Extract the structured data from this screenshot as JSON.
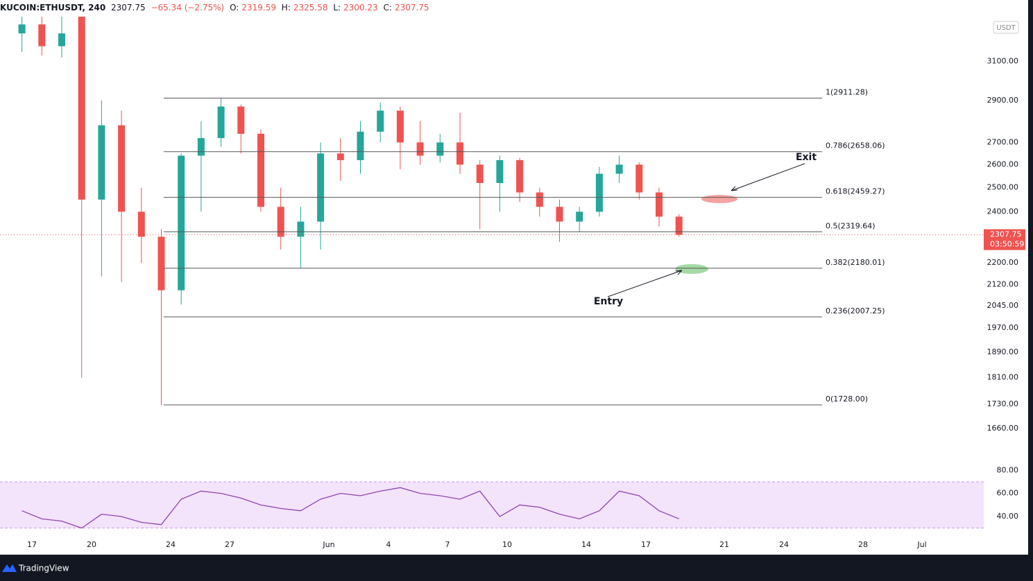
{
  "header": {
    "symbol": "KUCOIN:ETHUSDT, 240",
    "last": 2307.75,
    "change": "−65.34 (−2.75%)",
    "ohlc": [
      {
        "label": "O:",
        "value": 2319.59
      },
      {
        "label": "H:",
        "value": 2325.58
      },
      {
        "label": "L:",
        "value": 2300.23
      },
      {
        "label": "C:",
        "value": 2307.75
      }
    ]
  },
  "chart_data": {
    "type": "candlestick",
    "log_scale": true,
    "currency": "USDT",
    "up_color": "#26a69a",
    "down_color": "#ef5350",
    "ylim": [
      1580,
      3340
    ],
    "yticks": [
      {
        "value": 3100,
        "label": "3100.00"
      },
      {
        "value": 2900,
        "label": "2900.00"
      },
      {
        "value": 2700,
        "label": "2700.00"
      },
      {
        "value": 2600,
        "label": "2600.00"
      },
      {
        "value": 2500,
        "label": "2500.00"
      },
      {
        "value": 2400,
        "label": "2400.00"
      },
      {
        "value": 2200,
        "label": "2200.00"
      },
      {
        "value": 2120,
        "label": "2120.00"
      },
      {
        "value": 2045,
        "label": "2045.00"
      },
      {
        "value": 1970,
        "label": "1970.00"
      },
      {
        "value": 1890,
        "label": "1890.00"
      },
      {
        "value": 1810,
        "label": "1810.00"
      },
      {
        "value": 1730,
        "label": "1730.00"
      },
      {
        "value": 1660,
        "label": "1660.00"
      }
    ],
    "xtick_labels": [
      "17",
      "20",
      "24",
      "27",
      "Jun",
      "4",
      "7",
      "10",
      "14",
      "17",
      "21",
      "24",
      "28",
      "Jul"
    ],
    "candles": [
      {
        "open": 3250,
        "high": 3400,
        "low": 3150,
        "close": 3300
      },
      {
        "open": 3300,
        "high": 3400,
        "low": 3130,
        "close": 3180
      },
      {
        "open": 3180,
        "high": 3400,
        "low": 3120,
        "close": 3250
      },
      {
        "open": 3380,
        "high": 3400,
        "low": 1810,
        "close": 2450
      },
      {
        "open": 2450,
        "high": 2900,
        "low": 2150,
        "close": 2780
      },
      {
        "open": 2780,
        "high": 2850,
        "low": 2130,
        "close": 2400
      },
      {
        "open": 2400,
        "high": 2500,
        "low": 2200,
        "close": 2300
      },
      {
        "open": 2300,
        "high": 2330,
        "low": 1728,
        "close": 2100
      },
      {
        "open": 2100,
        "high": 2650,
        "low": 2050,
        "close": 2640
      },
      {
        "open": 2640,
        "high": 2800,
        "low": 2400,
        "close": 2720
      },
      {
        "open": 2720,
        "high": 2910,
        "low": 2680,
        "close": 2870
      },
      {
        "open": 2870,
        "high": 2880,
        "low": 2650,
        "close": 2740
      },
      {
        "open": 2740,
        "high": 2760,
        "low": 2400,
        "close": 2420
      },
      {
        "open": 2420,
        "high": 2500,
        "low": 2250,
        "close": 2300
      },
      {
        "open": 2300,
        "high": 2420,
        "low": 2180,
        "close": 2360
      },
      {
        "open": 2360,
        "high": 2700,
        "low": 2250,
        "close": 2650
      },
      {
        "open": 2650,
        "high": 2720,
        "low": 2530,
        "close": 2620
      },
      {
        "open": 2620,
        "high": 2800,
        "low": 2560,
        "close": 2750
      },
      {
        "open": 2750,
        "high": 2890,
        "low": 2700,
        "close": 2850
      },
      {
        "open": 2850,
        "high": 2870,
        "low": 2580,
        "close": 2700
      },
      {
        "open": 2700,
        "high": 2800,
        "low": 2600,
        "close": 2640
      },
      {
        "open": 2640,
        "high": 2740,
        "low": 2610,
        "close": 2700
      },
      {
        "open": 2700,
        "high": 2840,
        "low": 2560,
        "close": 2600
      },
      {
        "open": 2600,
        "high": 2620,
        "low": 2330,
        "close": 2520
      },
      {
        "open": 2520,
        "high": 2640,
        "low": 2400,
        "close": 2620
      },
      {
        "open": 2620,
        "high": 2630,
        "low": 2440,
        "close": 2480
      },
      {
        "open": 2480,
        "high": 2500,
        "low": 2380,
        "close": 2420
      },
      {
        "open": 2420,
        "high": 2450,
        "low": 2280,
        "close": 2360
      },
      {
        "open": 2360,
        "high": 2420,
        "low": 2320,
        "close": 2400
      },
      {
        "open": 2400,
        "high": 2590,
        "low": 2380,
        "close": 2560
      },
      {
        "open": 2560,
        "high": 2640,
        "low": 2520,
        "close": 2600
      },
      {
        "open": 2600,
        "high": 2610,
        "low": 2450,
        "close": 2480
      },
      {
        "open": 2480,
        "high": 2500,
        "low": 2340,
        "close": 2380
      },
      {
        "open": 2380,
        "high": 2390,
        "low": 2300,
        "close": 2307.75
      }
    ],
    "last_price": {
      "value": 2307.75,
      "countdown": "03:50:59"
    },
    "fib_levels": [
      {
        "value": 2911.28,
        "label": "1(2911.28)"
      },
      {
        "value": 2658.06,
        "label": "0.786(2658.06)"
      },
      {
        "value": 2459.27,
        "label": "0.618(2459.27)"
      },
      {
        "value": 2319.64,
        "label": "0.5(2319.64)"
      },
      {
        "value": 2180.01,
        "label": "0.382(2180.01)"
      },
      {
        "value": 2007.25,
        "label": "0.236(2007.25)"
      },
      {
        "value": 1728,
        "label": "0(1728.00)"
      }
    ],
    "annotations": [
      "Exit",
      "Entry"
    ],
    "rsi": {
      "color": "#8e44ad",
      "band": [
        30,
        70
      ],
      "ylim": [
        25,
        85
      ],
      "yticks": [
        {
          "value": 80,
          "label": "80.00"
        },
        {
          "value": 60,
          "label": "60.00"
        },
        {
          "value": 40,
          "label": "40.00"
        }
      ],
      "values": [
        45,
        38,
        36,
        30,
        42,
        40,
        35,
        33,
        55,
        62,
        60,
        56,
        50,
        47,
        45,
        55,
        60,
        58,
        62,
        65,
        60,
        58,
        55,
        62,
        40,
        50,
        48,
        42,
        38,
        45,
        62,
        58,
        45,
        38
      ]
    }
  },
  "footer": {
    "brand": "TradingView"
  }
}
